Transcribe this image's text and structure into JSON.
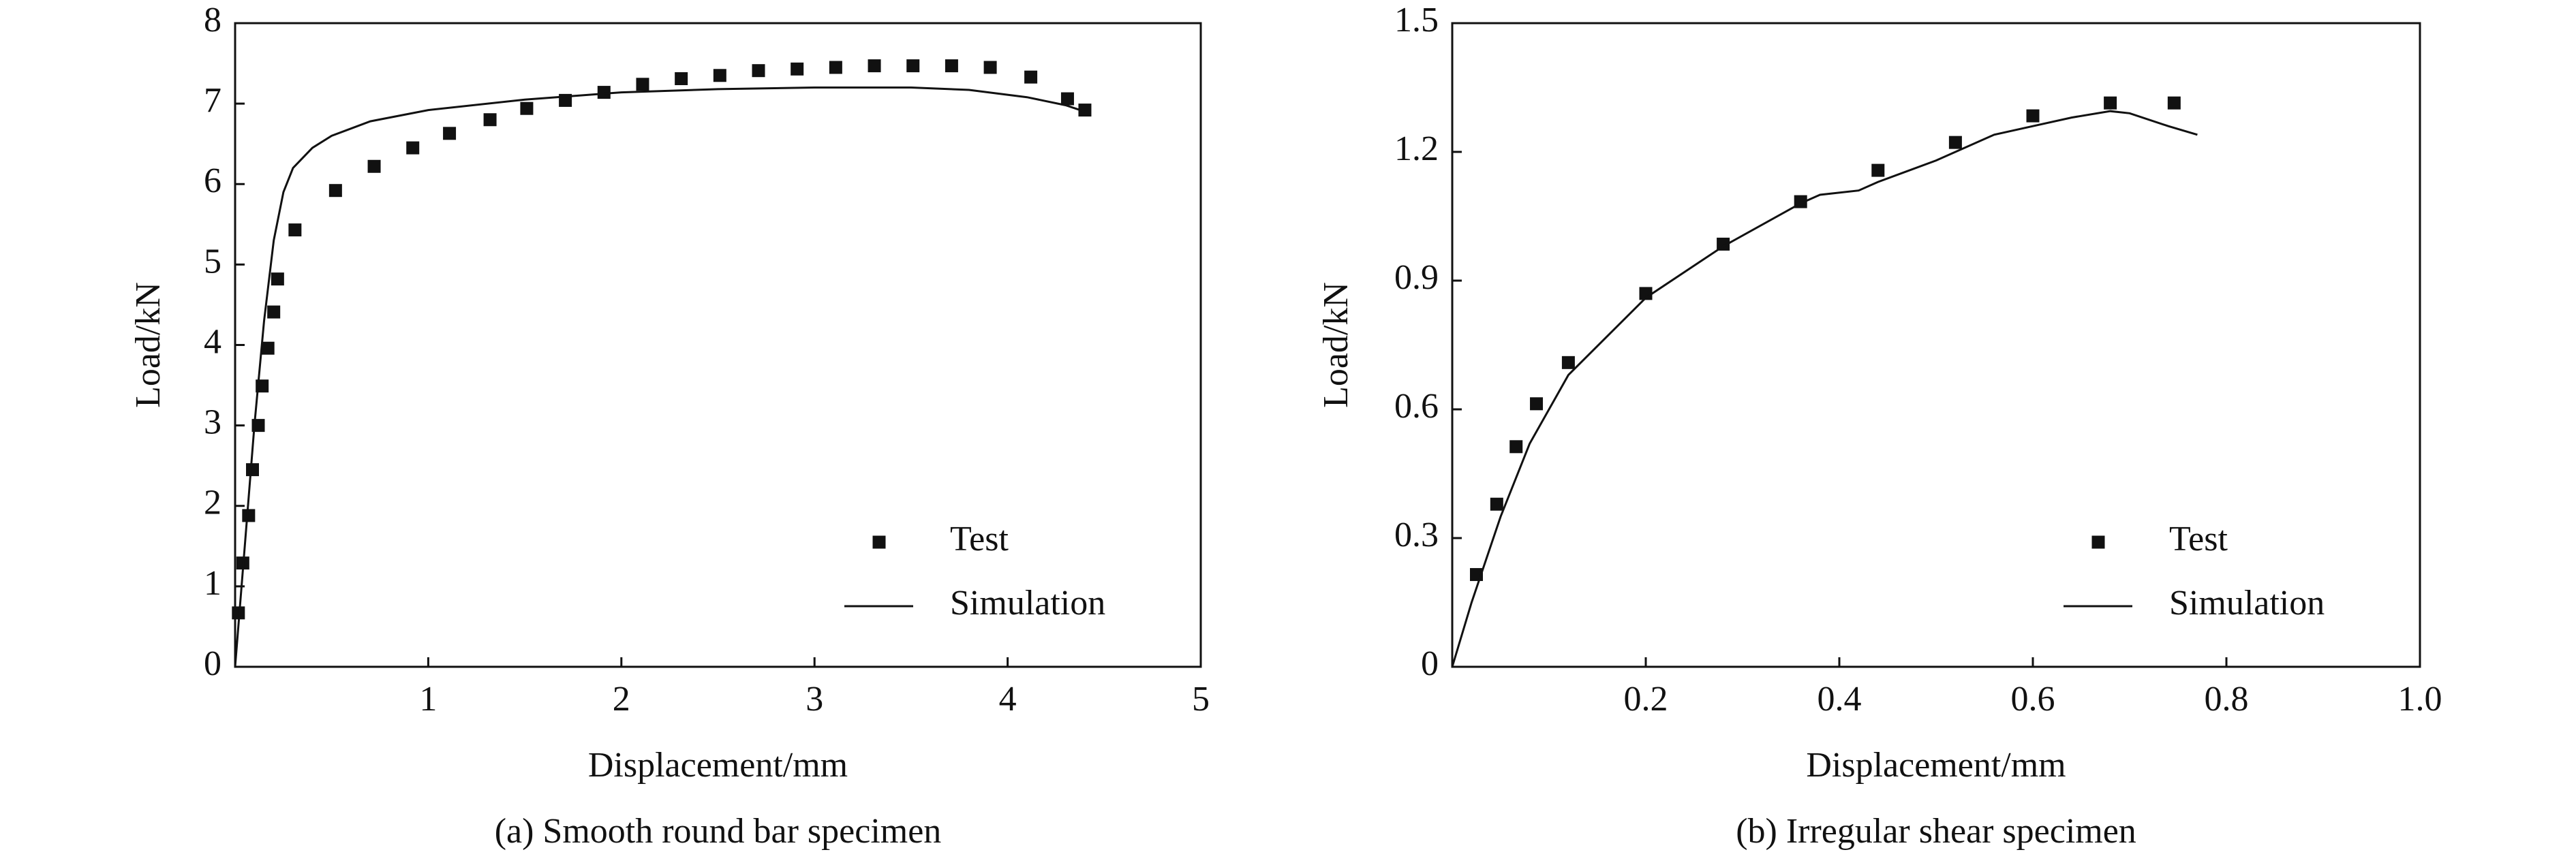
{
  "chart_data": [
    {
      "type": "line",
      "caption": "(a) Smooth round bar specimen",
      "x_label": "Displacement/mm",
      "y_label": "Load/kN",
      "xlim": [
        0,
        5
      ],
      "xticks": [
        1,
        2,
        3,
        4,
        5
      ],
      "ylim": [
        0,
        8
      ],
      "yticks": [
        0,
        1,
        2,
        3,
        4,
        5,
        6,
        7,
        8
      ],
      "legend": "lower right",
      "series": [
        {
          "name": "Test",
          "mode": "markers",
          "color": "#111111",
          "x": [
            0.017,
            0.04,
            0.07,
            0.09,
            0.12,
            0.14,
            0.17,
            0.2,
            0.22,
            0.31,
            0.52,
            0.72,
            0.92,
            1.11,
            1.32,
            1.51,
            1.71,
            1.91,
            2.11,
            2.31,
            2.51,
            2.71,
            2.91,
            3.11,
            3.31,
            3.51,
            3.71,
            3.91,
            4.12,
            4.31,
            4.4
          ],
          "values": [
            0.67,
            1.29,
            1.88,
            2.45,
            3.0,
            3.49,
            3.96,
            4.41,
            4.82,
            5.43,
            5.92,
            6.22,
            6.45,
            6.63,
            6.8,
            6.94,
            7.04,
            7.14,
            7.24,
            7.31,
            7.35,
            7.41,
            7.43,
            7.45,
            7.47,
            7.47,
            7.47,
            7.45,
            7.33,
            7.06,
            6.92
          ]
        },
        {
          "name": "Simulation",
          "mode": "line",
          "color": "#111111",
          "x": [
            0,
            0.05,
            0.1,
            0.15,
            0.2,
            0.25,
            0.3,
            0.4,
            0.5,
            0.7,
            1.0,
            1.5,
            2.0,
            2.5,
            3.0,
            3.5,
            3.8,
            4.1,
            4.3,
            4.4
          ],
          "values": [
            0,
            1.5,
            3.0,
            4.3,
            5.3,
            5.9,
            6.2,
            6.45,
            6.6,
            6.78,
            6.92,
            7.05,
            7.14,
            7.18,
            7.2,
            7.2,
            7.17,
            7.08,
            6.98,
            6.9
          ]
        }
      ]
    },
    {
      "type": "line",
      "caption": "(b) Irregular shear specimen",
      "x_label": "Displacement/mm",
      "y_label": "Load/kN",
      "xlim": [
        0,
        1
      ],
      "xticks": [
        0.2,
        0.4,
        0.6,
        0.8,
        {
          "value": 1,
          "label": "1.0"
        }
      ],
      "ylim": [
        0,
        1.5
      ],
      "yticks": [
        0,
        0.3,
        0.6,
        0.9,
        1.2,
        1.5
      ],
      "legend": "lower right",
      "series": [
        {
          "name": "Test",
          "mode": "markers",
          "color": "#111111",
          "x": [
            0.025,
            0.046,
            0.066,
            0.087,
            0.12,
            0.2,
            0.28,
            0.36,
            0.44,
            0.52,
            0.6,
            0.68,
            0.746
          ],
          "values": [
            0.215,
            0.379,
            0.513,
            0.613,
            0.709,
            0.87,
            0.985,
            1.084,
            1.157,
            1.222,
            1.284,
            1.314,
            1.314
          ]
        },
        {
          "name": "Simulation",
          "mode": "line",
          "color": "#111111",
          "x": [
            0,
            0.02,
            0.05,
            0.08,
            0.12,
            0.2,
            0.28,
            0.36,
            0.38,
            0.42,
            0.44,
            0.5,
            0.56,
            0.6,
            0.64,
            0.68,
            0.7,
            0.74,
            0.77
          ],
          "values": [
            0,
            0.15,
            0.35,
            0.52,
            0.68,
            0.86,
            0.98,
            1.08,
            1.1,
            1.11,
            1.13,
            1.18,
            1.24,
            1.26,
            1.28,
            1.295,
            1.29,
            1.26,
            1.24
          ]
        }
      ]
    }
  ]
}
